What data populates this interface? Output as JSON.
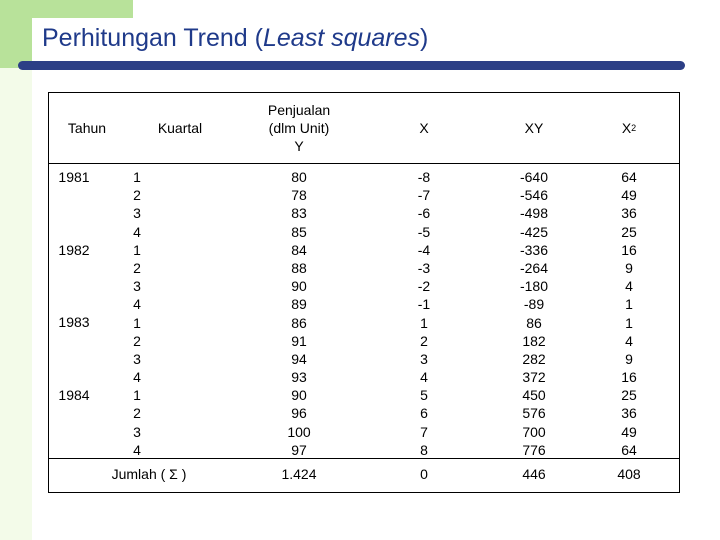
{
  "slide": {
    "title_main": "Perhitungan Trend (",
    "title_em": "Least squares",
    "title_end": ")"
  },
  "table": {
    "headers": {
      "tahun": "Tahun",
      "kuartal": "Kuartal",
      "penjualan_line1": "Penjualan",
      "penjualan_line2": "(dlm Unit)",
      "penjualan_line3": "Y",
      "x": "X",
      "xy": "XY",
      "x2_base": "X",
      "x2_sup": "2"
    },
    "years": [
      "1981",
      "1982",
      "1983",
      "1984"
    ],
    "kuartal": [
      "1",
      "2",
      "3",
      "4",
      "1",
      "2",
      "3",
      "4",
      "1",
      "2",
      "3",
      "4",
      "1",
      "2",
      "3",
      "4"
    ],
    "y": [
      "80",
      "78",
      "83",
      "85",
      "84",
      "88",
      "90",
      "89",
      "86",
      "91",
      "94",
      "93",
      "90",
      "96",
      "100",
      "97"
    ],
    "x": [
      "-8",
      "-7",
      "-6",
      "-5",
      "-4",
      "-3",
      "-2",
      "-1",
      "1",
      "2",
      "3",
      "4",
      "5",
      "6",
      "7",
      "8"
    ],
    "xy": [
      "-640",
      "-546",
      "-498",
      "-425",
      "-336",
      "-264",
      "-180",
      "-89",
      "86",
      "182",
      "282",
      "372",
      "450",
      "576",
      "700",
      "776"
    ],
    "x2": [
      "64",
      "49",
      "36",
      "25",
      "16",
      "9",
      "4",
      "1",
      "1",
      "4",
      "9",
      "16",
      "25",
      "36",
      "49",
      "64"
    ],
    "totals": {
      "label": "Jumlah ( Σ )",
      "y": "1.424",
      "x": "0",
      "xy": "446",
      "x2": "408"
    }
  }
}
